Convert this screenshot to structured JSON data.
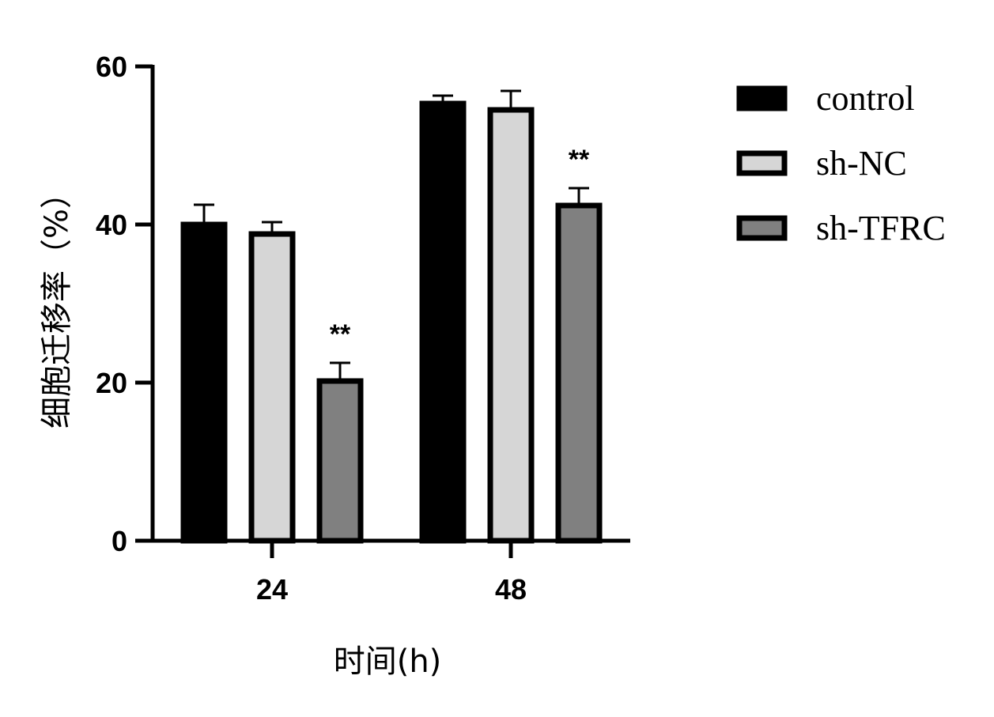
{
  "chart_data": {
    "type": "bar",
    "title": "",
    "xlabel": "时间(h)",
    "ylabel": "细胞迁移率（%）",
    "categories": [
      "24",
      "48"
    ],
    "ylim": [
      0,
      60
    ],
    "yticks": [
      "0",
      "20",
      "40",
      "60"
    ],
    "grid": false,
    "legend_position": "top-right",
    "series": [
      {
        "name": "control",
        "color": "#000000",
        "values": [
          40,
          55.3
        ],
        "errors": [
          2.5,
          1.0
        ]
      },
      {
        "name": "sh-NC",
        "color": "#d6d6d6",
        "values": [
          38.8,
          54.5
        ],
        "errors": [
          1.5,
          2.4
        ]
      },
      {
        "name": "sh-TFRC",
        "color": "#808080",
        "values": [
          20.2,
          42.4
        ],
        "errors": [
          2.3,
          2.2
        ]
      }
    ],
    "annotations": [
      {
        "series": "sh-TFRC",
        "category": "24",
        "text": "**"
      },
      {
        "series": "sh-TFRC",
        "category": "48",
        "text": "**"
      }
    ]
  }
}
